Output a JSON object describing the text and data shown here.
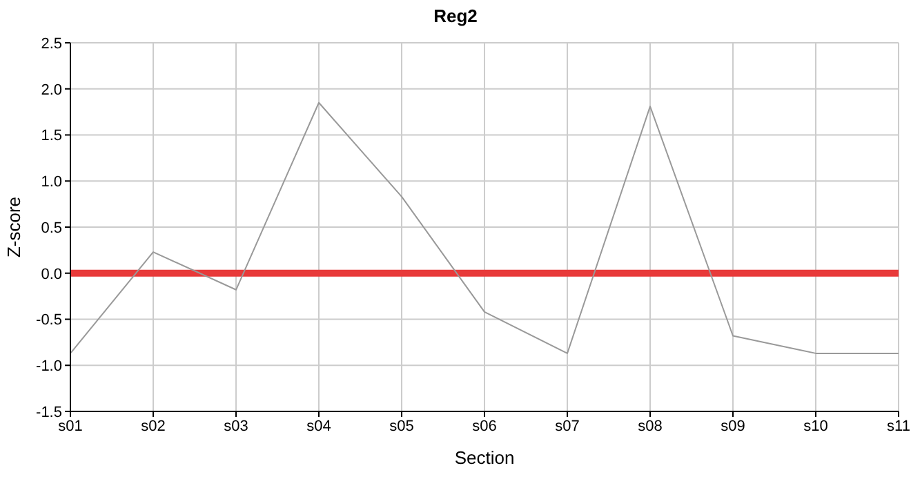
{
  "chart_data": {
    "type": "line",
    "title": "Reg2",
    "xlabel": "Section",
    "ylabel": "Z-score",
    "categories": [
      "s01",
      "s02",
      "s03",
      "s04",
      "s05",
      "s06",
      "s07",
      "s08",
      "s09",
      "s10",
      "s11"
    ],
    "series": [
      {
        "color": "#999999",
        "values": [
          -0.87,
          0.23,
          -0.18,
          1.85,
          0.83,
          -0.42,
          -0.87,
          1.81,
          -0.68,
          -0.87,
          -0.87
        ]
      }
    ],
    "ylim": [
      -1.5,
      2.5
    ],
    "yticks": [
      {
        "value": -1.5,
        "label": "-1.5"
      },
      {
        "value": -1,
        "label": "-1.0"
      },
      {
        "value": -0.5,
        "label": "-0.5"
      },
      {
        "value": 0,
        "label": "0.0"
      },
      {
        "value": 0.5,
        "label": "0.5"
      },
      {
        "value": 1,
        "label": "1.0"
      },
      {
        "value": 1.5,
        "label": "1.5"
      },
      {
        "value": 2,
        "label": "2.0"
      },
      {
        "value": 2.5,
        "label": "2.5"
      }
    ],
    "ref_lines": [
      {
        "axis": "y",
        "value": 0,
        "color": "#e83a3a"
      }
    ],
    "grid": true,
    "legend": false,
    "marker": "none",
    "line_style": "solid"
  }
}
